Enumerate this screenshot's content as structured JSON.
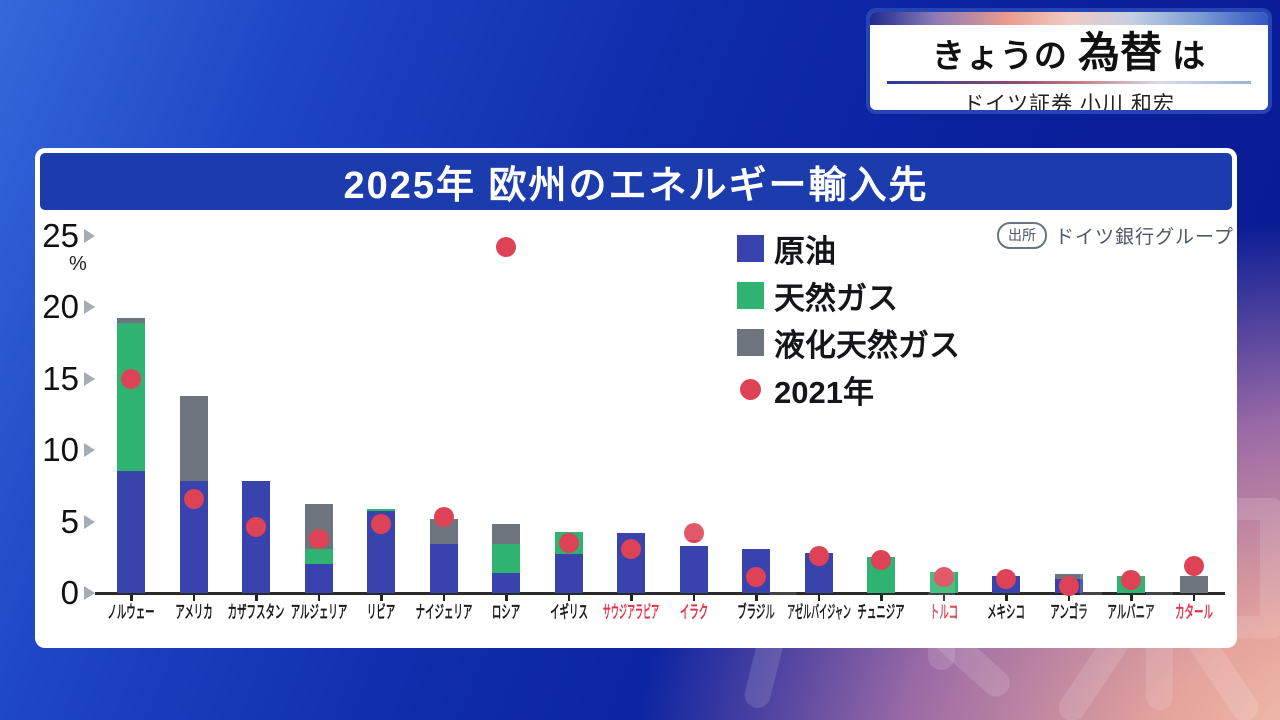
{
  "header": {
    "title_prefix": "きょうの",
    "title_emphasis": "為替",
    "title_suffix": "は",
    "presenter": "ドイツ証券 小川 和宏"
  },
  "source": {
    "badge": "出所",
    "name": "ドイツ銀行グループ"
  },
  "colors": {
    "crude_oil": "#3943ae",
    "natural_gas": "#2eb470",
    "lng": "#6e747e",
    "dot_2021": "#dd4257",
    "red_label": "#e23348",
    "banner_bg": "#1c3bad"
  },
  "chart_data": {
    "type": "bar",
    "subtype": "stacked-bar-with-2021-dots",
    "title": "2025年 欧州のエネルギー輸入先",
    "unit": "%",
    "ylim": [
      0,
      25
    ],
    "yticks": [
      0,
      5,
      10,
      15,
      20,
      25
    ],
    "grid": false,
    "legend_position": "top-right-inside",
    "legend": [
      {
        "label": "原油",
        "shape": "square",
        "color": "#3943ae"
      },
      {
        "label": "天然ガス",
        "shape": "square",
        "color": "#2eb470"
      },
      {
        "label": "液化天然ガス",
        "shape": "square",
        "color": "#6e747e"
      },
      {
        "label": "2021年",
        "shape": "circle",
        "color": "#dd4257"
      }
    ],
    "series_keys": [
      "crude_oil",
      "natural_gas",
      "lng"
    ],
    "dot_series": "2021年",
    "categories": [
      {
        "label": "ノルウェー",
        "red_label": false,
        "crude_oil": 8.5,
        "natural_gas": 10.4,
        "lng": 0.3,
        "dot_2021": 15.0
      },
      {
        "label": "アメリカ",
        "red_label": false,
        "crude_oil": 7.8,
        "natural_gas": 0,
        "lng": 6.0,
        "dot_2021": 6.6
      },
      {
        "label": "カザフスタン",
        "red_label": false,
        "crude_oil": 7.8,
        "natural_gas": 0,
        "lng": 0,
        "dot_2021": 4.6
      },
      {
        "label": "アルジェリア",
        "red_label": false,
        "crude_oil": 2.0,
        "natural_gas": 1.1,
        "lng": 3.1,
        "dot_2021": 3.8
      },
      {
        "label": "リビア",
        "red_label": false,
        "crude_oil": 5.7,
        "natural_gas": 0.2,
        "lng": 0,
        "dot_2021": 4.8
      },
      {
        "label": "ナイジェリア",
        "red_label": false,
        "crude_oil": 3.4,
        "natural_gas": 0,
        "lng": 1.8,
        "dot_2021": 5.3
      },
      {
        "label": "ロシア",
        "red_label": false,
        "crude_oil": 1.4,
        "natural_gas": 2.0,
        "lng": 1.4,
        "dot_2021": 24.2
      },
      {
        "label": "イギリス",
        "red_label": false,
        "crude_oil": 2.7,
        "natural_gas": 1.6,
        "lng": 0,
        "dot_2021": 3.5
      },
      {
        "label": "サウジアラビア",
        "red_label": true,
        "crude_oil": 4.2,
        "natural_gas": 0,
        "lng": 0,
        "dot_2021": 3.1
      },
      {
        "label": "イラク",
        "red_label": true,
        "crude_oil": 3.3,
        "natural_gas": 0,
        "lng": 0,
        "dot_2021": 4.2
      },
      {
        "label": "ブラジル",
        "red_label": false,
        "crude_oil": 3.1,
        "natural_gas": 0,
        "lng": 0,
        "dot_2021": 1.1
      },
      {
        "label": "アゼルバイジャン",
        "red_label": false,
        "crude_oil": 2.8,
        "natural_gas": 0,
        "lng": 0,
        "dot_2021": 2.6
      },
      {
        "label": "チュニジア",
        "red_label": false,
        "crude_oil": 0,
        "natural_gas": 2.5,
        "lng": 0,
        "dot_2021": 2.3
      },
      {
        "label": "トルコ",
        "red_label": true,
        "crude_oil": 0,
        "natural_gas": 1.5,
        "lng": 0,
        "dot_2021": 1.1
      },
      {
        "label": "メキシコ",
        "red_label": false,
        "crude_oil": 1.2,
        "natural_gas": 0,
        "lng": 0,
        "dot_2021": 1.0
      },
      {
        "label": "アンゴラ",
        "red_label": false,
        "crude_oil": 1.0,
        "natural_gas": 0,
        "lng": 0.3,
        "dot_2021": 0.5
      },
      {
        "label": "アルバニア",
        "red_label": false,
        "crude_oil": 0,
        "natural_gas": 1.2,
        "lng": 0,
        "dot_2021": 0.9
      },
      {
        "label": "カタール",
        "red_label": true,
        "crude_oil": 0,
        "natural_gas": 0,
        "lng": 1.2,
        "dot_2021": 1.9
      }
    ]
  }
}
